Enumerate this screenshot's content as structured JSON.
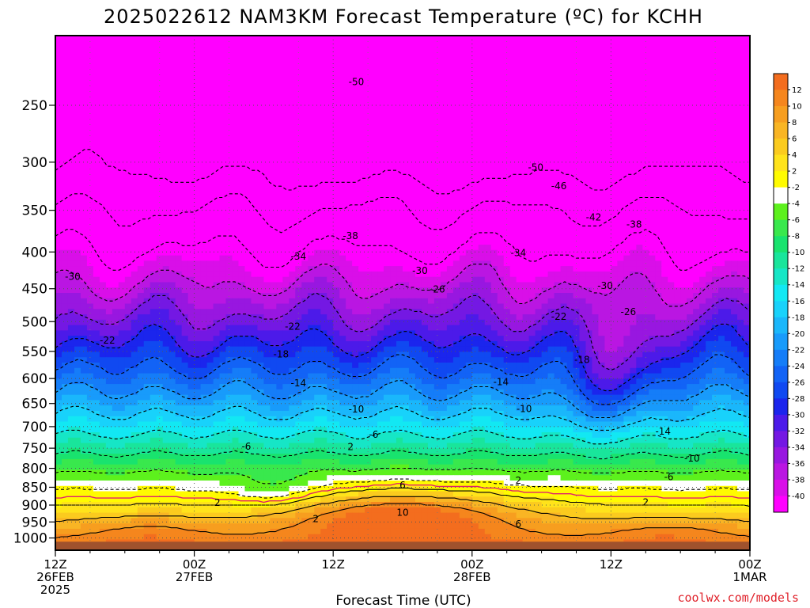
{
  "chart_data": {
    "type": "heatmap",
    "title": "2025022612 NAM3KM Forecast Temperature (ºC) for KCHH",
    "xlabel": "Forecast Time (UTC)",
    "ylabel": "",
    "credit": "coolwx.com/models",
    "y_scale": "log-pressure",
    "y_unit": "hPa",
    "y_range": [
      1040,
      200
    ],
    "y_ticks": [
      250,
      300,
      350,
      400,
      450,
      500,
      550,
      600,
      650,
      700,
      750,
      800,
      850,
      900,
      950,
      1000
    ],
    "x_range_hours": [
      0,
      60
    ],
    "x_ticks": [
      {
        "hour": 0,
        "lines": [
          "12Z",
          "26FEB",
          "2025"
        ]
      },
      {
        "hour": 12,
        "lines": [
          "00Z",
          "27FEB"
        ]
      },
      {
        "hour": 24,
        "lines": [
          "12Z"
        ]
      },
      {
        "hour": 36,
        "lines": [
          "00Z",
          "28FEB"
        ]
      },
      {
        "hour": 48,
        "lines": [
          "12Z"
        ]
      },
      {
        "hour": 60,
        "lines": [
          "00Z",
          "1MAR"
        ]
      }
    ],
    "grid": true,
    "surface_pressure_hpa": 1012,
    "colorbar": {
      "labels": [
        "12",
        "10",
        "8",
        "6",
        "4",
        "2",
        "-2",
        "-4",
        "-6",
        "-8",
        "-10",
        "-12",
        "-14",
        "-16",
        "-18",
        "-20",
        "-22",
        "-24",
        "-26",
        "-28",
        "-30",
        "-32",
        "-34",
        "-36",
        "-38",
        "-40"
      ],
      "colors": [
        "#f36d1e",
        "#f5861d",
        "#f79e1f",
        "#f9b524",
        "#fbcb1e",
        "#ffe31b",
        "#fffb00",
        "#ffffff",
        "#5df11d",
        "#39e84d",
        "#19e36e",
        "#19e59b",
        "#16e6c6",
        "#12e8f3",
        "#18d2fb",
        "#1ab7fb",
        "#189bfb",
        "#157df8",
        "#1263f6",
        "#1049f1",
        "#1b25ed",
        "#4c1ae9",
        "#7418e3",
        "#9817e0",
        "#ba16e2",
        "#d90fe8",
        "#ff00ff"
      ]
    },
    "contour_labels": [
      {
        "t": "-50",
        "h": 26.0,
        "p": 232
      },
      {
        "t": "-50",
        "h": 41.5,
        "p": 305
      },
      {
        "t": "-46",
        "h": 43.5,
        "p": 324
      },
      {
        "t": "-42",
        "h": 46.5,
        "p": 358
      },
      {
        "t": "-38",
        "h": 50.0,
        "p": 366
      },
      {
        "t": "-38",
        "h": 25.5,
        "p": 380
      },
      {
        "t": "-34",
        "h": 21.0,
        "p": 406
      },
      {
        "t": "-34",
        "h": 40.0,
        "p": 401
      },
      {
        "t": "-30",
        "h": 1.5,
        "p": 433
      },
      {
        "t": "-30",
        "h": 31.5,
        "p": 425
      },
      {
        "t": "-30",
        "h": 47.5,
        "p": 446
      },
      {
        "t": "-26",
        "h": 33.0,
        "p": 451
      },
      {
        "t": "-26",
        "h": 49.5,
        "p": 485
      },
      {
        "t": "-22",
        "h": 4.5,
        "p": 531
      },
      {
        "t": "-22",
        "h": 20.5,
        "p": 508
      },
      {
        "t": "-22",
        "h": 43.5,
        "p": 492
      },
      {
        "t": "-18",
        "h": 19.5,
        "p": 555
      },
      {
        "t": "-18",
        "h": 45.5,
        "p": 565
      },
      {
        "t": "-14",
        "h": 21.0,
        "p": 609
      },
      {
        "t": "-14",
        "h": 38.5,
        "p": 607
      },
      {
        "t": "-14",
        "h": 52.5,
        "p": 711
      },
      {
        "t": "-10",
        "h": 26.0,
        "p": 662
      },
      {
        "t": "-10",
        "h": 40.5,
        "p": 661
      },
      {
        "t": "-10",
        "h": 55.0,
        "p": 775
      },
      {
        "t": "-6",
        "h": 16.5,
        "p": 746
      },
      {
        "t": "-6",
        "h": 27.5,
        "p": 718
      },
      {
        "t": "-6",
        "h": 53.0,
        "p": 822
      },
      {
        "t": "2",
        "h": 25.5,
        "p": 747
      },
      {
        "t": "2",
        "h": 14.0,
        "p": 893
      },
      {
        "t": "2",
        "h": 22.5,
        "p": 941
      },
      {
        "t": "2",
        "h": 40.0,
        "p": 832
      },
      {
        "t": "2",
        "h": 51.0,
        "p": 892
      },
      {
        "t": "6",
        "h": 30.0,
        "p": 845
      },
      {
        "t": "6",
        "h": 40.0,
        "p": 956
      },
      {
        "t": "10",
        "h": 30.0,
        "p": 922
      }
    ]
  }
}
